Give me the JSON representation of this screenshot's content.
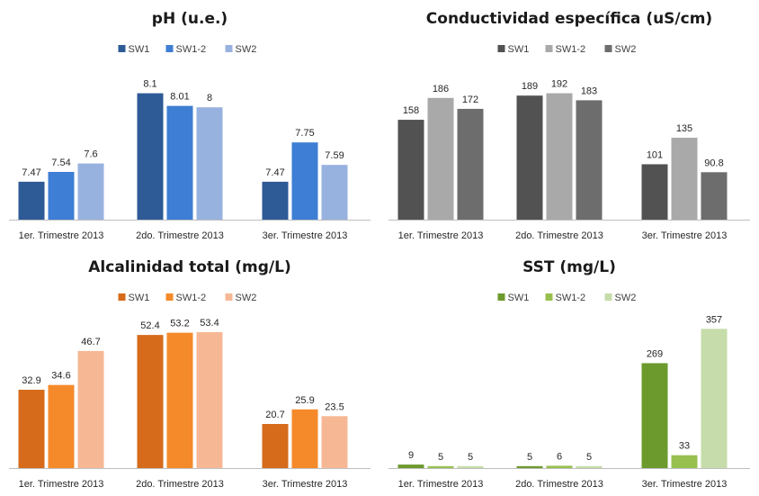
{
  "chart_data": [
    {
      "type": "bar",
      "title": "pH (u.e.)",
      "categories": [
        "1er. Trimestre 2013",
        "2do. Trimestre 2013",
        "3er. Trimestre 2013"
      ],
      "series": [
        {
          "name": "SW1",
          "values": [
            7.47,
            8.1,
            7.47
          ],
          "labels": [
            "7.47",
            "8.1",
            "7.47"
          ],
          "color": "#2e5a96"
        },
        {
          "name": "SW1-2",
          "values": [
            7.54,
            8.01,
            7.75
          ],
          "labels": [
            "7.54",
            "8.01",
            "7.75"
          ],
          "color": "#3e7ed4"
        },
        {
          "name": "SW2",
          "values": [
            7.6,
            8,
            7.59
          ],
          "labels": [
            "7.6",
            "8",
            "7.59"
          ],
          "color": "#98b2e0"
        }
      ],
      "ylim": [
        7.2,
        8.2
      ],
      "legend": "top",
      "grid": false
    },
    {
      "type": "bar",
      "title": "Conductividad específica (uS/cm)",
      "categories": [
        "1er. Trimestre 2013",
        "2do. Trimestre 2013",
        "3er. Trimestre 2013"
      ],
      "series": [
        {
          "name": "SW1",
          "values": [
            158,
            189,
            101
          ],
          "labels": [
            "158",
            "189",
            "101"
          ],
          "color": "#525252"
        },
        {
          "name": "SW1-2",
          "values": [
            186,
            192,
            135
          ],
          "labels": [
            "186",
            "192",
            "135"
          ],
          "color": "#a9a9a9"
        },
        {
          "name": "SW2",
          "values": [
            172,
            183,
            90.8
          ],
          "labels": [
            "172",
            "183",
            "90.8"
          ],
          "color": "#6d6d6d"
        }
      ],
      "ylim": [
        30,
        210
      ],
      "legend": "top",
      "grid": false
    },
    {
      "type": "bar",
      "title": "Alcalinidad total (mg/L)",
      "categories": [
        "1er. Trimestre 2013",
        "2do. Trimestre 2013",
        "3er. Trimestre 2013"
      ],
      "series": [
        {
          "name": "SW1",
          "values": [
            32.9,
            52.4,
            20.7
          ],
          "labels": [
            "32.9",
            "52.4",
            "20.7"
          ],
          "color": "#d56b1b"
        },
        {
          "name": "SW1-2",
          "values": [
            34.6,
            53.2,
            25.9
          ],
          "labels": [
            "34.6",
            "53.2",
            "25.9"
          ],
          "color": "#f58a2a"
        },
        {
          "name": "SW2",
          "values": [
            46.7,
            53.4,
            23.5
          ],
          "labels": [
            "46.7",
            "53.4",
            "23.5"
          ],
          "color": "#f6b894"
        }
      ],
      "ylim": [
        5,
        55
      ],
      "legend": "top",
      "grid": false
    },
    {
      "type": "bar",
      "title": "SST (mg/L)",
      "categories": [
        "1er. Trimestre 2013",
        "2do. Trimestre 2013",
        "3er. Trimestre 2013"
      ],
      "series": [
        {
          "name": "SW1",
          "values": [
            9,
            5,
            269
          ],
          "labels": [
            "9",
            "5",
            "269"
          ],
          "color": "#6d9a2d"
        },
        {
          "name": "SW1-2",
          "values": [
            5,
            6,
            33
          ],
          "labels": [
            "5",
            "6",
            "33"
          ],
          "color": "#98c04f"
        },
        {
          "name": "SW2",
          "values": [
            5,
            5,
            357
          ],
          "labels": [
            "5",
            "5",
            "357"
          ],
          "color": "#c6dcaa"
        }
      ],
      "ylim": [
        0,
        360
      ],
      "legend": "top",
      "grid": false
    }
  ]
}
